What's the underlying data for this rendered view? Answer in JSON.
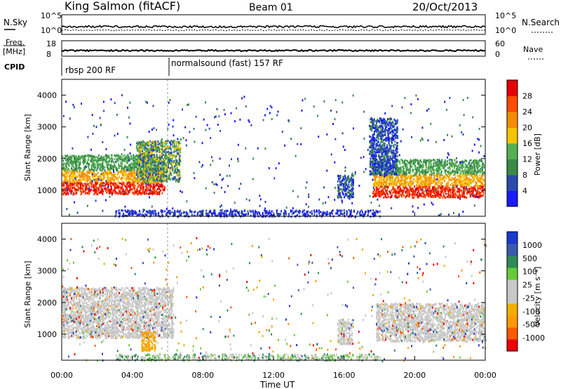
{
  "header": {
    "station": "King Salmon (fitACF)",
    "beam": "Beam 01",
    "date": "20/Oct/2013"
  },
  "top_panel": {
    "left_label": "N.Sky",
    "right_label": "N.Search",
    "left_ticks": [
      "10^5",
      "10^0"
    ],
    "right_ticks": [
      "10^5",
      "10^0"
    ]
  },
  "freq_panel": {
    "left_label_1": "Freq.",
    "left_label_2": "[MHz]",
    "right_label": "Nave",
    "left_ticks": [
      "18",
      "8"
    ],
    "right_ticks": [
      "60",
      "0"
    ]
  },
  "cpid": {
    "label": "CPID",
    "programs": [
      "rbsp 200 RF",
      "normalsound (fast) 157 RF"
    ]
  },
  "colors": {
    "power": [
      "#1a1aff",
      "#2a4ab0",
      "#3a8a4a",
      "#55b050",
      "#f5c400",
      "#f58c00",
      "#ff4a00",
      "#e60000"
    ],
    "velocity": [
      "#ee0000",
      "#ff5a00",
      "#ff9a00",
      "#f0b000",
      "#c8c8c8",
      "#c8c8c8",
      "#66cc33",
      "#2e8b57",
      "#3a5ab0",
      "#1a3ad0"
    ]
  },
  "chart_data": [
    {
      "type": "heatmap",
      "title": "Power",
      "xlabel": "Time UT",
      "ylabel": "Slant Range [km]",
      "x_ticks": [
        "00:00",
        "04:00",
        "08:00",
        "12:00",
        "16:00",
        "20:00",
        "00:00"
      ],
      "y_ticks": [
        "1000",
        "2000",
        "3000",
        "4000"
      ],
      "x_range_hours": [
        0,
        24
      ],
      "y_range_km": [
        180,
        4500
      ],
      "colorbar_label": "Power [dB]",
      "colorbar_ticks": [
        "4",
        "8",
        "12",
        "16",
        "20",
        "24",
        "28"
      ],
      "regions": [
        {
          "t0": 0.0,
          "t1": 5.8,
          "r0": 900,
          "r1": 2150,
          "level": "high"
        },
        {
          "t0": 4.2,
          "t1": 6.7,
          "r0": 1300,
          "r1": 2600,
          "level": "mid"
        },
        {
          "t0": 15.6,
          "t1": 16.5,
          "r0": 800,
          "r1": 1500,
          "level": "low"
        },
        {
          "t0": 17.6,
          "t1": 24.0,
          "r0": 800,
          "r1": 2000,
          "level": "high"
        },
        {
          "t0": 17.4,
          "t1": 19.0,
          "r0": 1500,
          "r1": 3300,
          "level": "low"
        }
      ]
    },
    {
      "type": "heatmap",
      "title": "Velocity",
      "xlabel": "Time UT",
      "ylabel": "Slant Range [km]",
      "x_ticks": [
        "00:00",
        "04:00",
        "08:00",
        "12:00",
        "16:00",
        "20:00",
        "00:00"
      ],
      "y_ticks": [
        "1000",
        "2000",
        "3000",
        "4000"
      ],
      "x_range_hours": [
        0,
        24
      ],
      "y_range_km": [
        180,
        4500
      ],
      "colorbar_label": "Velocity [m s⁻¹]",
      "colorbar_ticks": [
        "1000",
        "500",
        "100",
        "25",
        "-25",
        "-100",
        "-500",
        "-1000"
      ],
      "regions": [
        {
          "t0": 0.0,
          "t1": 6.3,
          "r0": 900,
          "r1": 2500,
          "level": "grey"
        },
        {
          "t0": 4.5,
          "t1": 5.3,
          "r0": 500,
          "r1": 1100,
          "level": "orange"
        },
        {
          "t0": 15.6,
          "t1": 16.5,
          "r0": 700,
          "r1": 1500,
          "level": "grey"
        },
        {
          "t0": 17.8,
          "t1": 24.0,
          "r0": 800,
          "r1": 2000,
          "level": "grey"
        }
      ]
    }
  ]
}
